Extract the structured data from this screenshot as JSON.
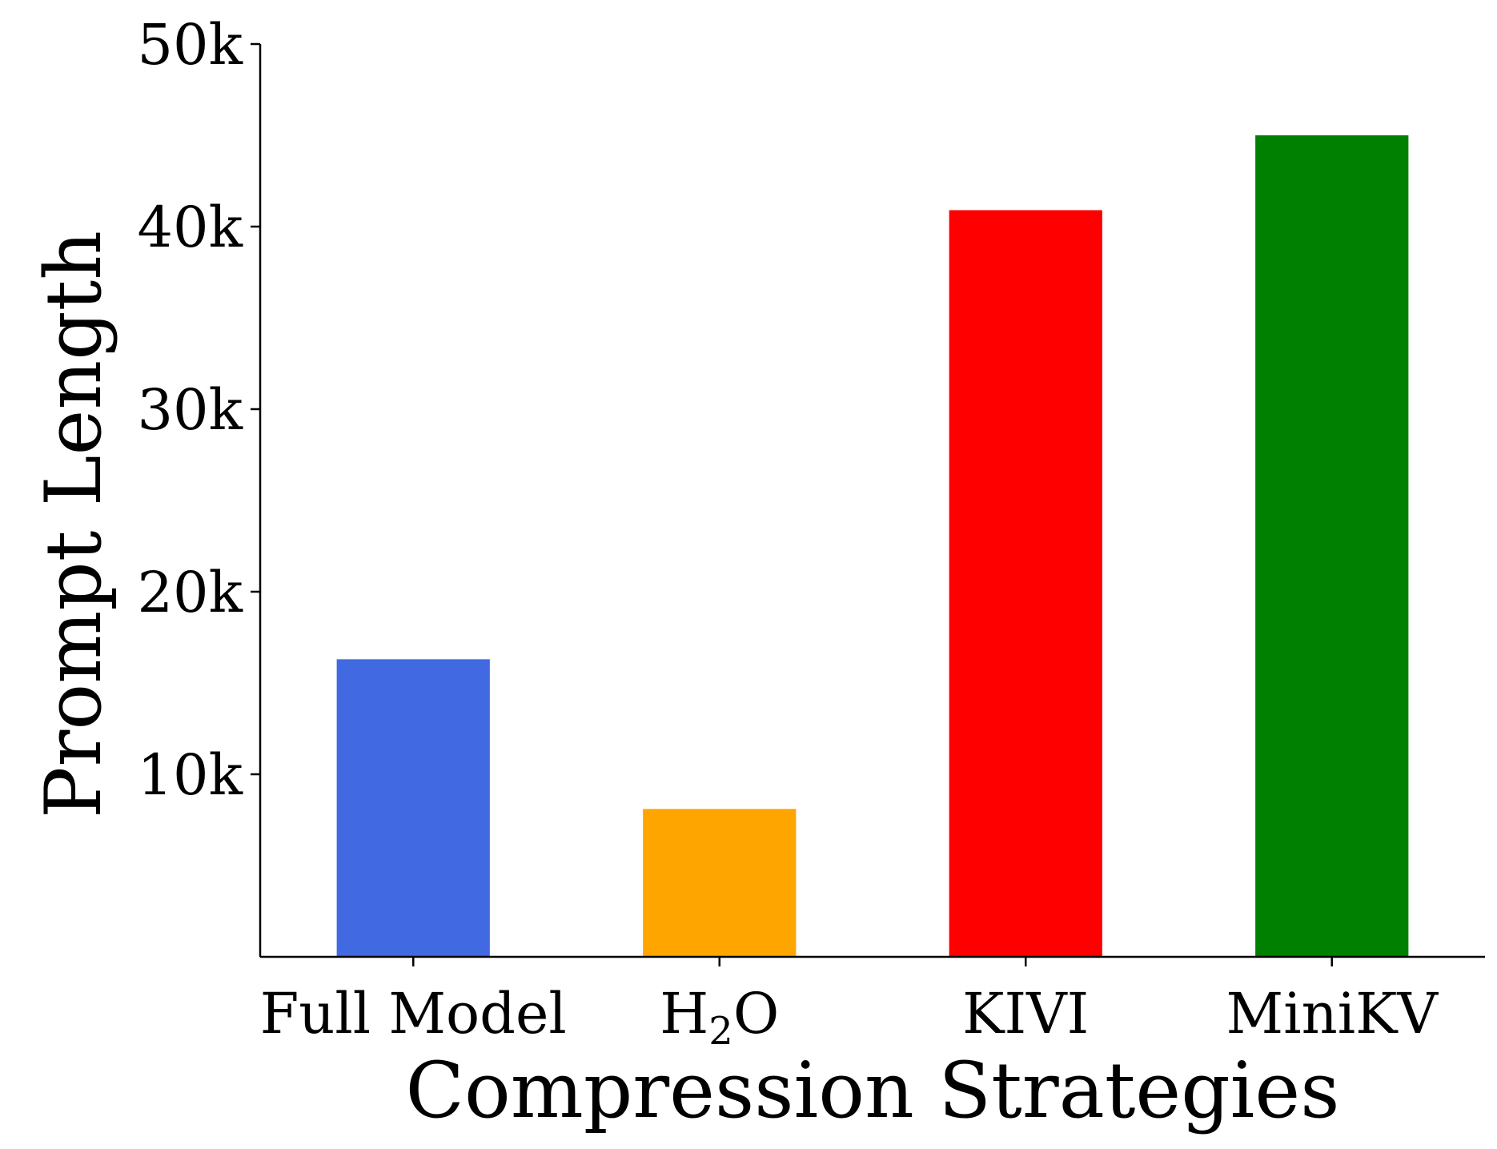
{
  "chart_data": {
    "type": "bar",
    "title": "",
    "xlabel": "Compression Strategies",
    "ylabel": "Prompt Length",
    "categories": [
      {
        "main": "Full Model",
        "sub": "",
        "post": ""
      },
      {
        "main": "H",
        "sub": "2",
        "post": "O"
      },
      {
        "main": "KIVI",
        "sub": "",
        "post": ""
      },
      {
        "main": "MiniKV",
        "sub": "",
        "post": ""
      }
    ],
    "values": [
      16300,
      8100,
      40900,
      45000
    ],
    "colors": [
      "#4169e1",
      "#ffa500",
      "#ff0000",
      "#008000"
    ],
    "ylim": [
      0,
      50000
    ],
    "yticks": [
      10000,
      20000,
      30000,
      40000,
      50000
    ],
    "ytick_labels": [
      "10k",
      "20k",
      "30k",
      "40k",
      "50k"
    ],
    "grid": false,
    "legend": "none"
  }
}
